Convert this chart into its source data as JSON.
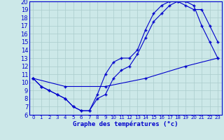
{
  "title": "Graphe des températures (°c)",
  "bg_color": "#cce8e8",
  "grid_color": "#aacccc",
  "line_color": "#0000cc",
  "spine_color": "#0000cc",
  "xlim": [
    -0.5,
    23.5
  ],
  "ylim": [
    6,
    20
  ],
  "xticks": [
    0,
    1,
    2,
    3,
    4,
    5,
    6,
    7,
    8,
    9,
    10,
    11,
    12,
    13,
    14,
    15,
    16,
    17,
    18,
    19,
    20,
    21,
    22,
    23
  ],
  "yticks": [
    6,
    7,
    8,
    9,
    10,
    11,
    12,
    13,
    14,
    15,
    16,
    17,
    18,
    19,
    20
  ],
  "line1_x": [
    0,
    1,
    2,
    3,
    4,
    5,
    6,
    7,
    8,
    9,
    10,
    11,
    12,
    13,
    14,
    15,
    16,
    17,
    18,
    19,
    20,
    21,
    22,
    23
  ],
  "line1_y": [
    10.5,
    9.5,
    9.0,
    8.5,
    8.0,
    7.0,
    6.5,
    6.5,
    8.5,
    11.0,
    12.5,
    13.0,
    13.0,
    14.0,
    16.5,
    18.5,
    19.5,
    20.0,
    20.0,
    20.0,
    19.5,
    17.0,
    15.0,
    13.0
  ],
  "line2_x": [
    0,
    1,
    2,
    3,
    4,
    5,
    6,
    7,
    8,
    9,
    10,
    11,
    12,
    13,
    14,
    15,
    16,
    17,
    18,
    19,
    20,
    21,
    22,
    23
  ],
  "line2_y": [
    10.5,
    9.5,
    9.0,
    8.5,
    8.0,
    7.0,
    6.5,
    6.5,
    8.0,
    8.5,
    10.5,
    11.5,
    12.0,
    13.5,
    15.5,
    17.5,
    18.5,
    19.5,
    20.0,
    19.5,
    19.0,
    19.0,
    17.0,
    15.0
  ],
  "line3_x": [
    0,
    4,
    9,
    14,
    19,
    23
  ],
  "line3_y": [
    10.5,
    9.5,
    9.5,
    10.5,
    12.0,
    13.0
  ],
  "xlabel_fontsize": 6.5,
  "tick_fontsize_x": 5.0,
  "tick_fontsize_y": 6.0
}
